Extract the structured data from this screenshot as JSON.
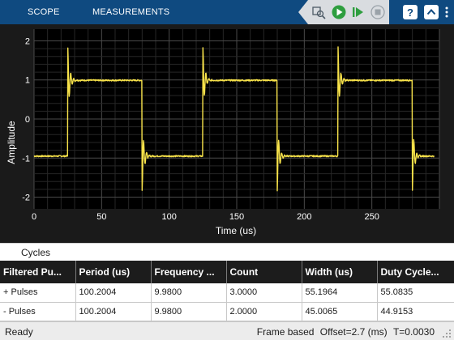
{
  "toolstrip": {
    "tabs": [
      {
        "label": "SCOPE"
      },
      {
        "label": "MEASUREMENTS"
      }
    ],
    "tools": [
      {
        "name": "highlight-block-icon"
      },
      {
        "name": "run-icon"
      },
      {
        "name": "step-forward-icon"
      },
      {
        "name": "stop-icon"
      },
      {
        "name": "help-icon"
      },
      {
        "name": "collapse-icon"
      },
      {
        "name": "more-options-icon"
      }
    ],
    "colors": {
      "bar": "#0f4a80",
      "run": "#2e9e3f",
      "trace": "#f7e24a"
    }
  },
  "chart_data": {
    "type": "line",
    "xlabel": "Time (us)",
    "ylabel": "Amplitude",
    "xlim": [
      0,
      300
    ],
    "ylim": [
      -2.3,
      2.3
    ],
    "xticks": [
      0,
      50,
      100,
      150,
      200,
      250
    ],
    "yticks": [
      2,
      1,
      0,
      -1,
      -2
    ],
    "grid": true,
    "series": [
      {
        "style": "square wave with overshoot ringing at each edge",
        "x": [
          0,
          25,
          25,
          80,
          80,
          125,
          125,
          180,
          180,
          225,
          225,
          280,
          280,
          296
        ],
        "y": [
          -0.95,
          -0.95,
          0.99,
          0.99,
          -0.95,
          -0.95,
          0.99,
          0.99,
          -0.95,
          -0.95,
          0.99,
          0.99,
          -0.95,
          -0.95
        ],
        "overshoot_peaks": [
          {
            "x": 25,
            "y": 1.83
          },
          {
            "x": 80,
            "y": -1.83
          },
          {
            "x": 125,
            "y": 1.83
          },
          {
            "x": 180,
            "y": -1.83
          },
          {
            "x": 225,
            "y": 1.83
          },
          {
            "x": 280,
            "y": -1.83
          }
        ]
      }
    ]
  },
  "measurements": {
    "title": "Cycles",
    "columns": [
      "Filtered Pu...",
      "Period (us)",
      "Frequency ...",
      "Count",
      "Width (us)",
      "Duty Cycle..."
    ],
    "rows": [
      [
        "+ Pulses",
        "100.2004",
        "9.9800",
        "3.0000",
        "55.1964",
        "55.0835"
      ],
      [
        "- Pulses",
        "100.2004",
        "9.9800",
        "2.0000",
        "45.0065",
        "44.9153"
      ]
    ]
  },
  "status": {
    "state": "Ready",
    "mode": "Frame based",
    "offset": "Offset=2.7 (ms)",
    "time": "T=0.0030"
  }
}
